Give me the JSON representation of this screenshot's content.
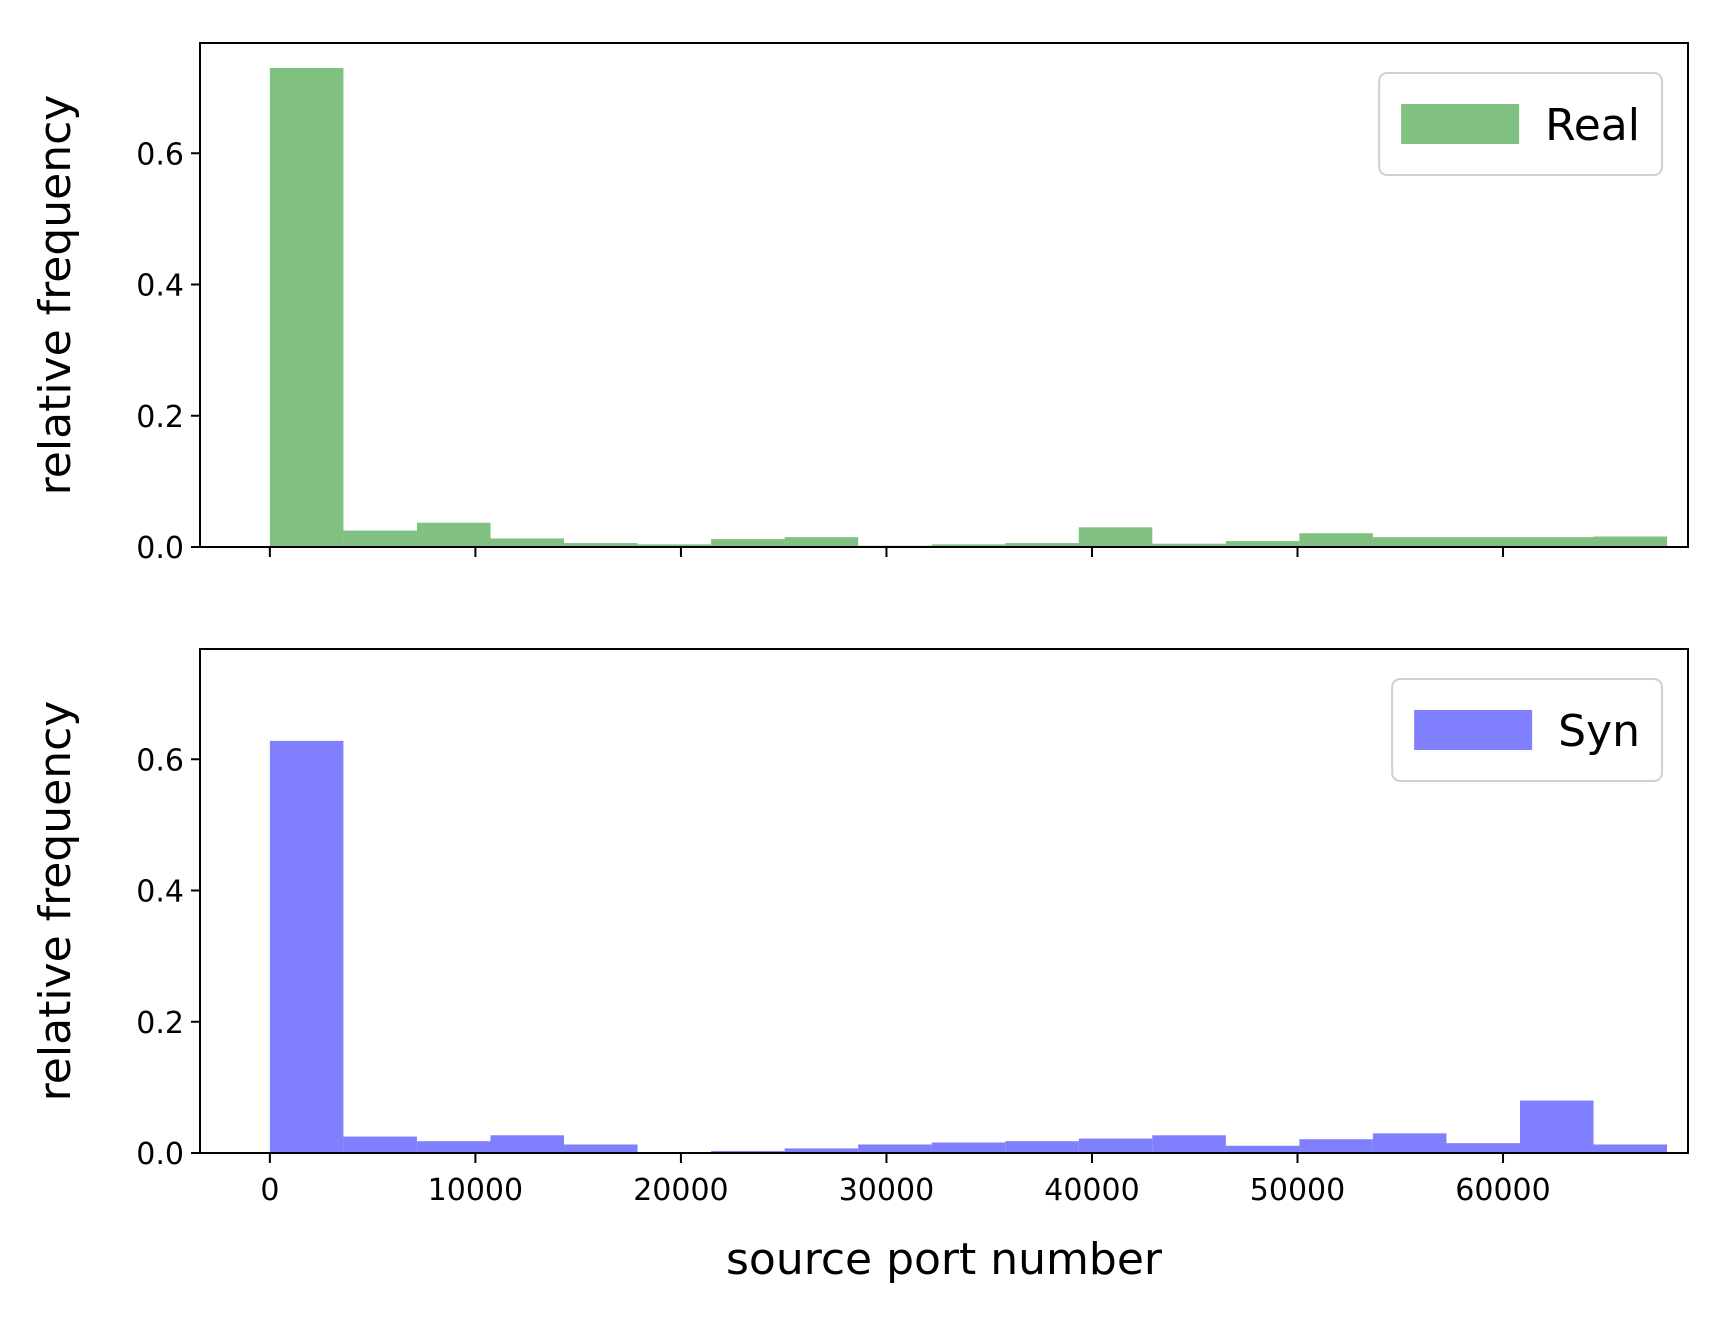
{
  "chart_data": [
    {
      "type": "bar",
      "histogram": true,
      "bin_edges": [
        0,
        3578,
        7156,
        10734,
        14312,
        17890,
        21468,
        25046,
        28624,
        32202,
        35780,
        39358,
        42936,
        46514,
        50092,
        53670,
        57248,
        60826,
        64404,
        67982
      ],
      "series": [
        {
          "name": "Real",
          "color": "#80c080",
          "values": [
            0.73,
            0.025,
            0.037,
            0.013,
            0.006,
            0.004,
            0.012,
            0.015,
            0.002,
            0.004,
            0.006,
            0.03,
            0.005,
            0.009,
            0.021,
            0.015,
            0.015,
            0.015,
            0.016
          ]
        }
      ],
      "xlabel": "",
      "ylabel": "relative frequency",
      "xlim": [
        -3400,
        69000
      ],
      "ylim": [
        0,
        0.768
      ],
      "xticks": [
        0,
        10000,
        20000,
        30000,
        40000,
        50000,
        60000
      ],
      "xticks_labeled": false,
      "yticks": [
        0.0,
        0.2,
        0.4,
        0.6
      ],
      "ytick_labels": [
        "0.0",
        "0.2",
        "0.4",
        "0.6"
      ],
      "grid": false,
      "legend": "top-right"
    },
    {
      "type": "bar",
      "histogram": true,
      "bin_edges": [
        0,
        3578,
        7156,
        10734,
        14312,
        17890,
        21468,
        25046,
        28624,
        32202,
        35780,
        39358,
        42936,
        46514,
        50092,
        53670,
        57248,
        60826,
        64404,
        67982
      ],
      "series": [
        {
          "name": "Syn",
          "color": "#8080ff",
          "values": [
            0.628,
            0.025,
            0.018,
            0.027,
            0.013,
            0.001,
            0.003,
            0.007,
            0.013,
            0.016,
            0.018,
            0.022,
            0.027,
            0.011,
            0.021,
            0.03,
            0.015,
            0.08,
            0.013
          ]
        }
      ],
      "xlabel": "source port number",
      "ylabel": "relative frequency",
      "xlim": [
        -3400,
        69000
      ],
      "ylim": [
        0,
        0.768
      ],
      "xticks": [
        0,
        10000,
        20000,
        30000,
        40000,
        50000,
        60000
      ],
      "xtick_labels": [
        "0",
        "10000",
        "20000",
        "30000",
        "40000",
        "50000",
        "60000"
      ],
      "xticks_labeled": true,
      "yticks": [
        0.0,
        0.2,
        0.4,
        0.6
      ],
      "ytick_labels": [
        "0.0",
        "0.2",
        "0.4",
        "0.6"
      ],
      "grid": false,
      "legend": "top-right"
    }
  ]
}
